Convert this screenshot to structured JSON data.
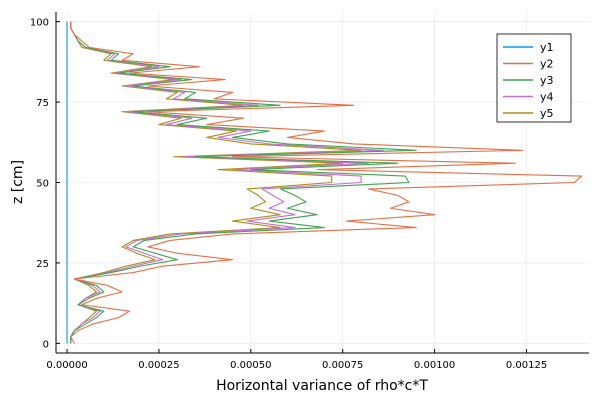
{
  "chart_data": {
    "type": "line",
    "title": "",
    "xlabel": "Horizontal variance of rho*c*T",
    "ylabel": "z [cm]",
    "xlim": [
      -3e-05,
      0.00142
    ],
    "ylim": [
      -3,
      103
    ],
    "xticks": [
      0,
      0.00025,
      0.0005,
      0.00075,
      0.001,
      0.00125
    ],
    "xtick_labels": [
      "0.00000",
      "0.00025",
      "0.00050",
      "0.00075",
      "0.00100",
      "0.00125"
    ],
    "yticks": [
      0,
      25,
      50,
      75,
      100
    ],
    "ytick_labels": [
      "0",
      "25",
      "50",
      "75",
      "100"
    ],
    "grid": true,
    "legend_position": "top-right",
    "z": [
      0,
      2,
      4,
      6,
      8,
      10,
      12,
      14,
      16,
      18,
      20,
      22,
      24,
      26,
      28,
      30,
      32,
      34,
      36,
      38,
      40,
      42,
      44,
      46,
      48,
      50,
      52,
      54,
      56,
      58,
      60,
      62,
      64,
      66,
      68,
      70,
      72,
      74,
      76,
      78,
      80,
      82,
      84,
      86,
      88,
      90,
      92,
      94,
      96,
      98,
      100
    ],
    "series": [
      {
        "name": "y1",
        "color": "#009AFA",
        "values": [
          0,
          0,
          0,
          0,
          0,
          0,
          0,
          0,
          0,
          0,
          0,
          0,
          0,
          0,
          0,
          0,
          0,
          0,
          0,
          0,
          0,
          0,
          0,
          0,
          0,
          0,
          0,
          0,
          0,
          0,
          0,
          0,
          0,
          0,
          0,
          0,
          0,
          0,
          0,
          0,
          0,
          0,
          0,
          0,
          0,
          0,
          0,
          0,
          0,
          0,
          0
        ]
      },
      {
        "name": "y2",
        "color": "#E36F47",
        "values": [
          2e-05,
          1e-05,
          3e-05,
          7e-05,
          0.00014,
          0.00017,
          4e-05,
          8e-05,
          0.00015,
          0.00011,
          2e-05,
          0.00018,
          0.00026,
          0.00045,
          0.0003,
          0.00022,
          0.00028,
          0.00045,
          0.00095,
          0.00076,
          0.001,
          0.00088,
          0.00093,
          0.0009,
          0.00082,
          0.00138,
          0.0014,
          0.00068,
          0.00122,
          0.00045,
          0.00124,
          0.00078,
          0.0006,
          0.0007,
          0.00038,
          0.00048,
          0.00022,
          0.00078,
          0.0004,
          0.00045,
          0.00022,
          0.00043,
          0.00017,
          0.00036,
          0.00015,
          0.00018,
          6e-05,
          4e-05,
          2e-05,
          1e-05,
          1e-05
        ]
      },
      {
        "name": "y3",
        "color": "#3EA44E",
        "values": [
          1e-05,
          1e-05,
          2e-05,
          5e-05,
          8e-05,
          0.0001,
          3e-05,
          6e-05,
          0.0001,
          8e-05,
          2e-05,
          0.00012,
          0.0002,
          0.0003,
          0.00024,
          0.00018,
          0.00021,
          0.00035,
          0.0007,
          0.00055,
          0.00068,
          0.0006,
          0.00065,
          0.00062,
          0.00058,
          0.00093,
          0.00092,
          0.0005,
          0.0009,
          0.00035,
          0.00095,
          0.0006,
          0.00045,
          0.00055,
          0.0003,
          0.00038,
          0.00018,
          0.00058,
          0.00032,
          0.00035,
          0.00018,
          0.00034,
          0.00014,
          0.00028,
          0.00012,
          0.00014,
          5e-05,
          3e-05,
          2e-05,
          1e-05,
          1e-05
        ]
      },
      {
        "name": "y4",
        "color": "#C271D2",
        "values": [
          1e-05,
          1e-05,
          2e-05,
          4e-05,
          7e-05,
          9e-05,
          3e-05,
          5e-05,
          9e-05,
          7e-05,
          2e-05,
          0.00011,
          0.00018,
          0.00026,
          0.00021,
          0.00016,
          0.00019,
          0.00031,
          0.00062,
          0.00049,
          0.00062,
          0.00055,
          0.00059,
          0.00056,
          0.00053,
          0.0008,
          0.0008,
          0.00045,
          0.00082,
          0.00032,
          0.00086,
          0.00055,
          0.00041,
          0.0005,
          0.00027,
          0.00034,
          0.00016,
          0.00052,
          0.00029,
          0.00032,
          0.00016,
          0.00031,
          0.00013,
          0.00025,
          0.00011,
          0.00013,
          5e-05,
          3e-05,
          2e-05,
          1e-05,
          1e-05
        ]
      },
      {
        "name": "y5",
        "color": "#AC8D18",
        "values": [
          1e-05,
          1e-05,
          2e-05,
          4e-05,
          6e-05,
          8e-05,
          3e-05,
          5e-05,
          8e-05,
          6e-05,
          2e-05,
          0.0001,
          0.00016,
          0.00024,
          0.00019,
          0.00015,
          0.00018,
          0.00028,
          0.00058,
          0.00045,
          0.00058,
          0.0005,
          0.00054,
          0.00052,
          0.00049,
          0.00072,
          0.00072,
          0.00041,
          0.00075,
          0.00029,
          0.0008,
          0.0005,
          0.00038,
          0.00046,
          0.00025,
          0.00031,
          0.00015,
          0.00048,
          0.00027,
          0.0003,
          0.00015,
          0.00029,
          0.00012,
          0.00023,
          0.0001,
          0.00012,
          4e-05,
          3e-05,
          2e-05,
          1e-05,
          1e-05
        ]
      }
    ]
  }
}
